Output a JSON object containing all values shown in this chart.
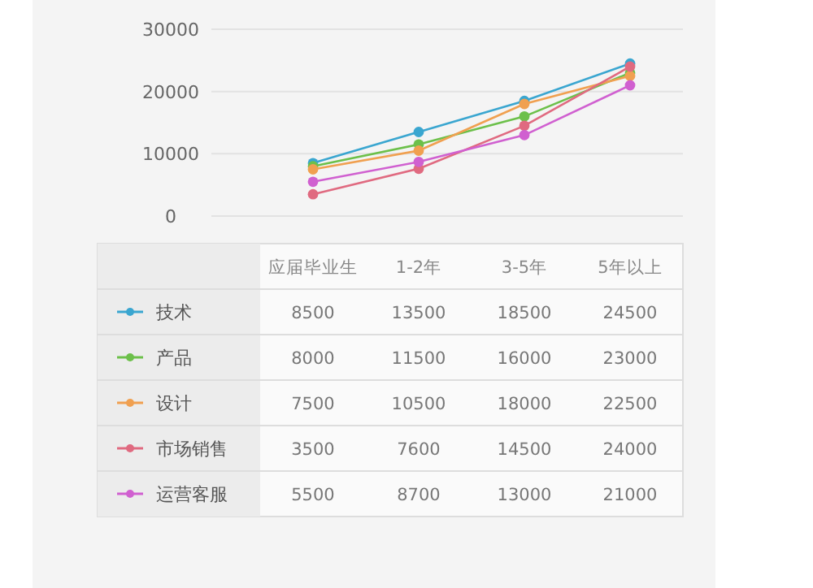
{
  "chart_data": {
    "type": "line",
    "categories": [
      "应届毕业生",
      "1-2年",
      "3-5年",
      "5年以上"
    ],
    "series": [
      {
        "name": "技术",
        "color": "#3aa6d0",
        "values": [
          8500,
          13500,
          18500,
          24500
        ]
      },
      {
        "name": "产品",
        "color": "#6cc04a",
        "values": [
          8000,
          11500,
          16000,
          23000
        ]
      },
      {
        "name": "设计",
        "color": "#f0a050",
        "values": [
          7500,
          10500,
          18000,
          22500
        ]
      },
      {
        "name": "市场销售",
        "color": "#e06a80",
        "values": [
          3500,
          7600,
          14500,
          24000
        ]
      },
      {
        "name": "运营客服",
        "color": "#d060d0",
        "values": [
          5500,
          8700,
          13000,
          21000
        ]
      }
    ],
    "ylim": [
      0,
      30000
    ],
    "yticks": [
      0,
      10000,
      20000,
      30000
    ],
    "grid": "y",
    "marker": "circle",
    "line_style": "solid",
    "data_labels": true,
    "legend": "bottom"
  }
}
